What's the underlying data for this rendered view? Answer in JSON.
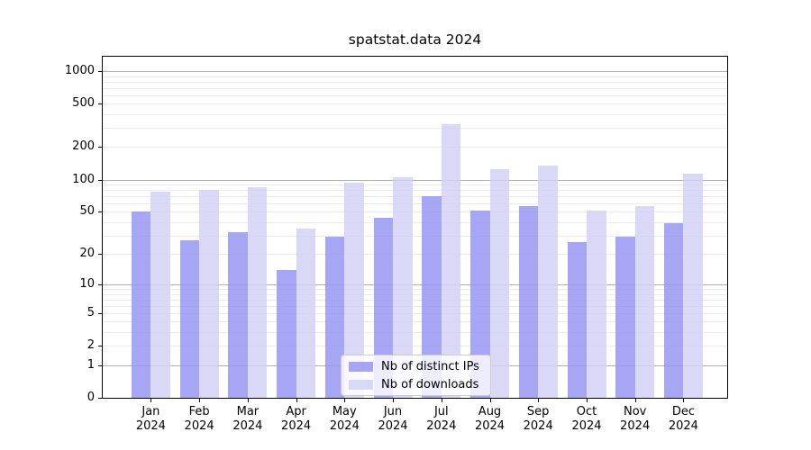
{
  "title": "spatstat.data 2024",
  "chart_data": {
    "type": "bar",
    "title": "spatstat.data 2024",
    "xlabel": "",
    "ylabel": "",
    "categories": [
      "Jan 2024",
      "Feb 2024",
      "Mar 2024",
      "Apr 2024",
      "May 2024",
      "Jun 2024",
      "Jul 2024",
      "Aug 2024",
      "Sep 2024",
      "Oct 2024",
      "Nov 2024",
      "Dec 2024"
    ],
    "series": [
      {
        "name": "Nb of distinct IPs",
        "color": "#9696f2",
        "values": [
          50,
          27,
          32,
          14,
          29,
          44,
          70,
          51,
          57,
          26,
          29,
          39
        ]
      },
      {
        "name": "Nb of downloads",
        "color": "#d2d2f6",
        "values": [
          77,
          80,
          85,
          35,
          94,
          105,
          324,
          125,
          134,
          51,
          57,
          113
        ]
      }
    ],
    "yscale": "log1p",
    "yticks": [
      0,
      1,
      2,
      5,
      10,
      20,
      50,
      100,
      200,
      500,
      1000
    ],
    "ylim": [
      0,
      1357
    ],
    "grid": {
      "major": true,
      "minor": true
    },
    "legend_position": "lower center"
  }
}
